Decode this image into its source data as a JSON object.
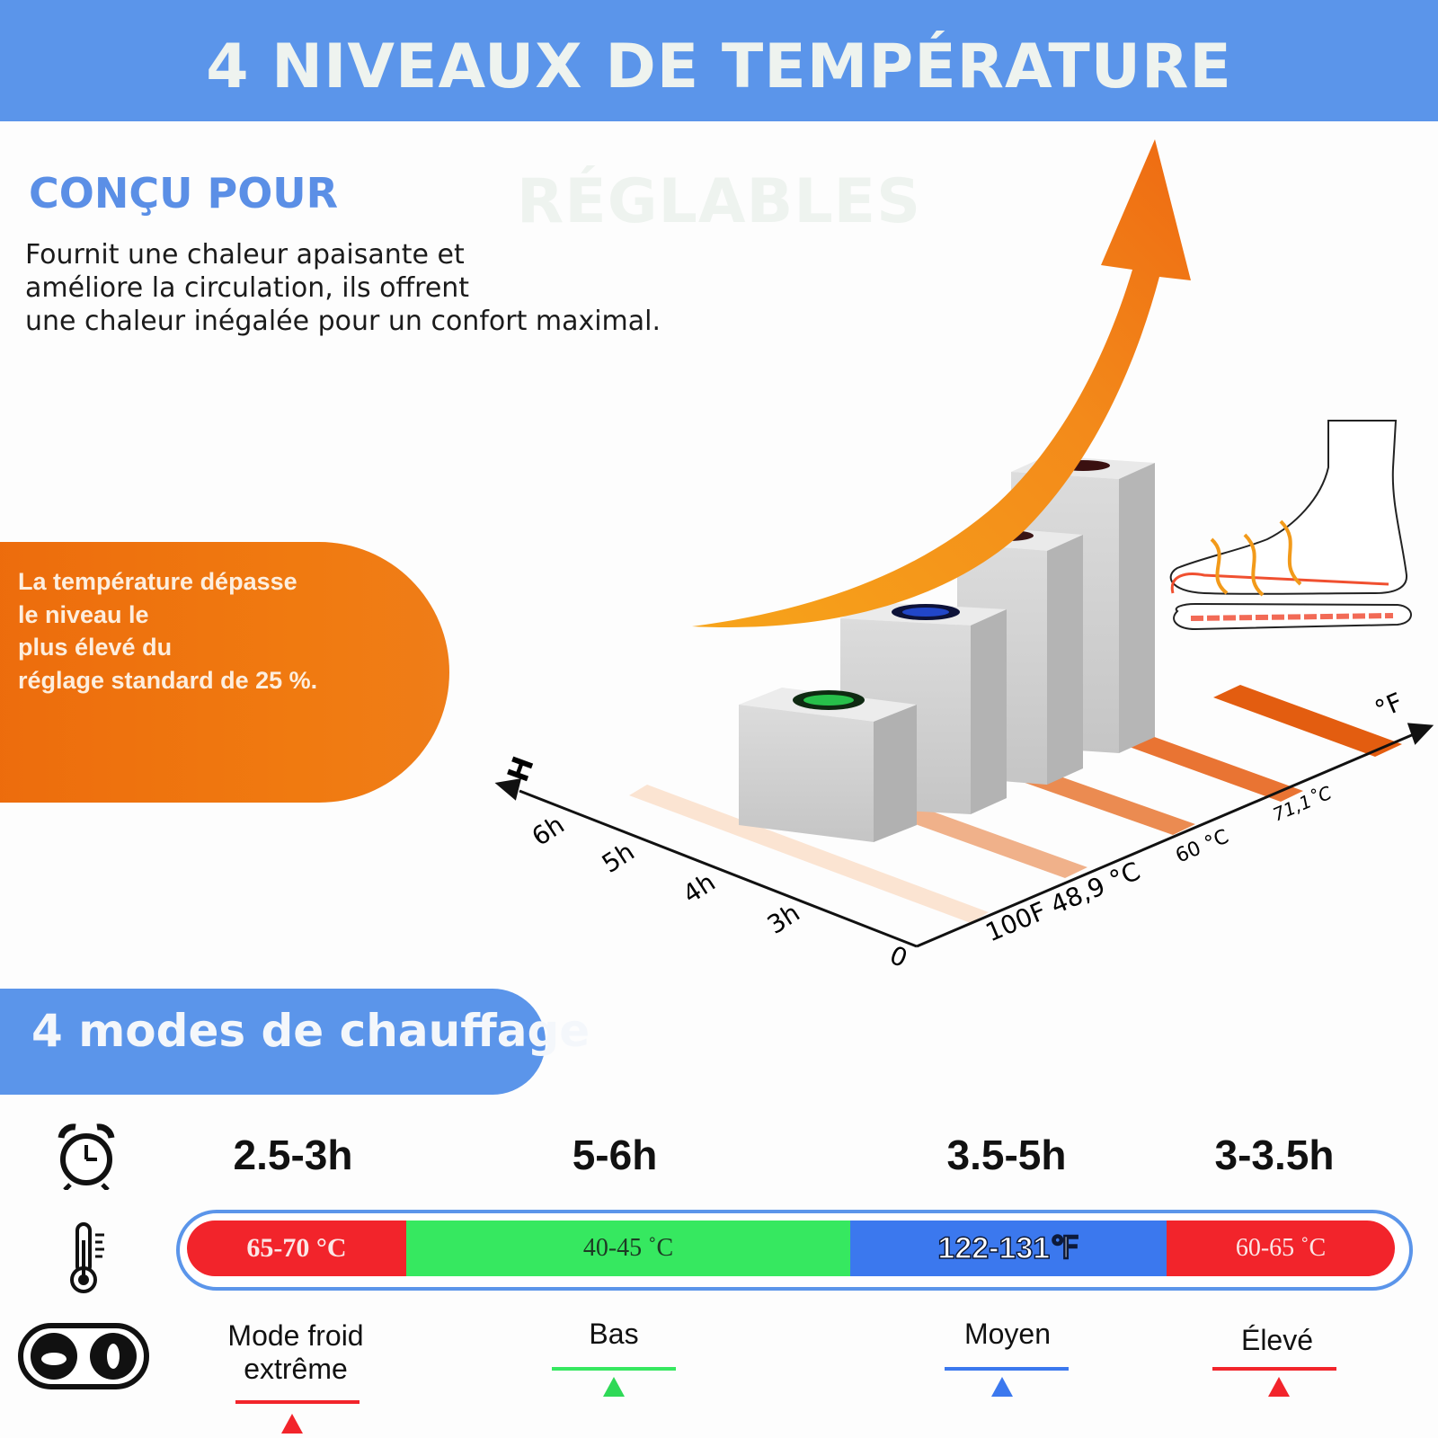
{
  "header": {
    "title": "4 NIVEAUX DE TEMPÉRATURE RÉGLABLES"
  },
  "intro": {
    "title": "CONÇU POUR",
    "lines": [
      "Fournit une chaleur apaisante et",
      "améliore la circulation, ils offrent",
      "une chaleur inégalée pour un confort maximal."
    ]
  },
  "highlight": {
    "lines": [
      "La température dépasse",
      "le niveau le",
      "plus élevé du",
      "réglage standard de 25 %."
    ]
  },
  "graphic": {
    "h_axis_label": "H",
    "f_axis_label": "°F",
    "origin_label": "0",
    "hour_ticks": [
      "6h",
      "5h",
      "4h",
      "3h"
    ],
    "temp_ticks": [
      "100F 48,9 °C",
      "60 °C",
      "71,1˚C"
    ]
  },
  "modes": {
    "title": "4 modes de chauffage",
    "icons": {
      "time": "alarm-clock-icon",
      "temp": "thermometer-icon",
      "mode": "foot-toggle-icon"
    },
    "items": [
      {
        "duration": "2.5-3h",
        "temp": "65-70 °C",
        "label_line1": "Mode froid",
        "label_line2": "extrême",
        "color": "#f2242b"
      },
      {
        "duration": "5-6h",
        "temp": "40-45 ˚C",
        "label_line1": "Bas",
        "label_line2": "",
        "color": "#36e860"
      },
      {
        "duration": "3.5-5h",
        "temp": "122-131℉",
        "label_line1": "Moyen",
        "label_line2": "",
        "color": "#3b78ee"
      },
      {
        "duration": "3-3.5h",
        "temp": "60-65 ˚C",
        "label_line1": "Élevé",
        "label_line2": "",
        "color": "#f2242b"
      }
    ]
  }
}
